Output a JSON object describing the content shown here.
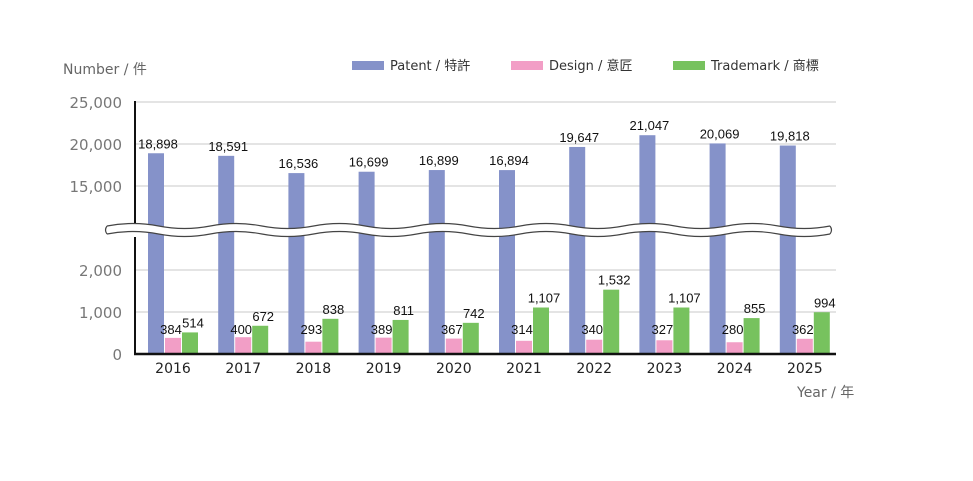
{
  "chart_data": {
    "type": "bar",
    "ylabel": "Number / 件",
    "xlabel": "Year / 年",
    "categories": [
      "2016",
      "2017",
      "2018",
      "2019",
      "2020",
      "2021",
      "2022",
      "2023",
      "2024",
      "2025"
    ],
    "series": [
      {
        "name": "Patent / 特許",
        "color": "#8592c9",
        "values": [
          18898,
          18591,
          16536,
          16699,
          16899,
          16894,
          19647,
          21047,
          20069,
          19818
        ],
        "labels": [
          "18,898",
          "18,591",
          "16,536",
          "16,699",
          "16,899",
          "16,894",
          "19,647",
          "21,047",
          "20,069",
          "19,818"
        ]
      },
      {
        "name": "Design / 意匠",
        "color": "#f29ec6",
        "values": [
          384,
          400,
          293,
          389,
          367,
          314,
          340,
          327,
          280,
          362
        ],
        "labels": [
          "384",
          "400",
          "293",
          "389",
          "367",
          "314",
          "340",
          "327",
          "280",
          "362"
        ]
      },
      {
        "name": "Trademark / 商標",
        "color": "#77c25e",
        "values": [
          514,
          672,
          838,
          811,
          742,
          1107,
          1532,
          1107,
          855,
          994
        ],
        "labels": [
          "514",
          "672",
          "838",
          "811",
          "742",
          "1,107",
          "1,532",
          "1,107",
          "855",
          "994"
        ]
      }
    ],
    "y_axis_break": {
      "lower_range": [
        0,
        3000
      ],
      "upper_range": [
        12500,
        25000
      ]
    },
    "yticks_lower": [
      "0",
      "1,000",
      "2,000"
    ],
    "yticks_upper": [
      "15,000",
      "20,000",
      "25,000"
    ],
    "legend_position": "top-right",
    "grid": "horizontal"
  }
}
